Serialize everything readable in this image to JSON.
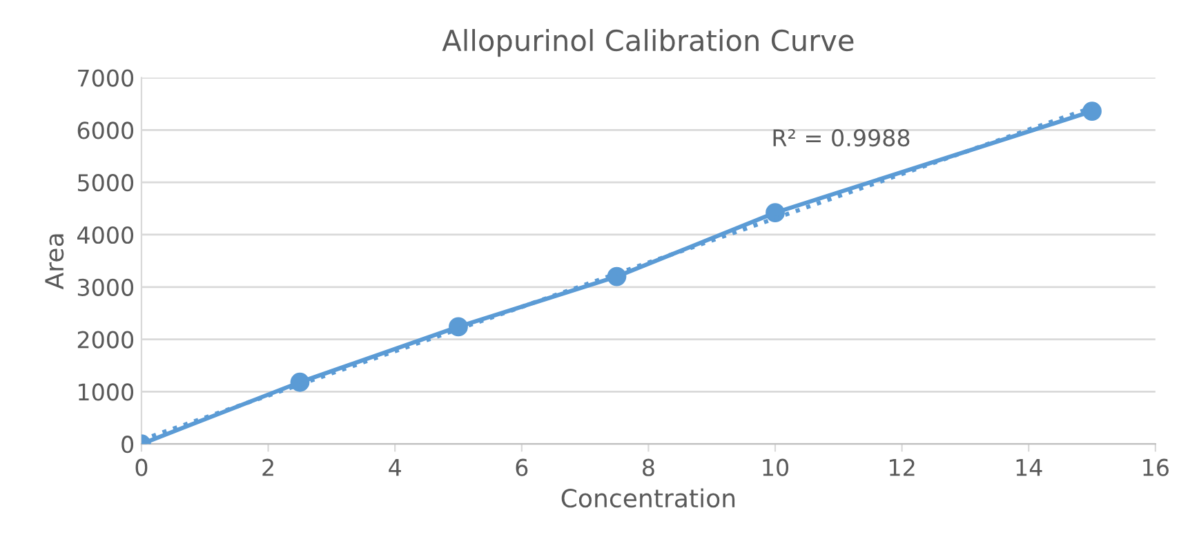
{
  "chart_data": {
    "type": "line",
    "title": "Allopurinol Calibration Curve",
    "xlabel": "Concentration",
    "ylabel": "Area",
    "series": [
      {
        "color": "#5b9bd5",
        "marker": "circle",
        "line_style": "solid",
        "x": [
          0,
          2.5,
          5,
          7.5,
          10,
          15
        ],
        "values": [
          0,
          1180,
          2240,
          3200,
          4420,
          6360
        ]
      },
      {
        "color": "#5b9bd5",
        "marker": "none",
        "line_style": "dotted",
        "x": [
          0,
          15
        ],
        "values": [
          80,
          6430
        ]
      }
    ],
    "annotations": [
      "R² = 0.9988"
    ],
    "xlim": [
      0,
      16
    ],
    "xticks": [
      0,
      2,
      4,
      6,
      8,
      10,
      12,
      14,
      16
    ],
    "ylim": [
      0,
      7000
    ],
    "yticks": [
      0,
      1000,
      2000,
      3000,
      4000,
      5000,
      6000,
      7000
    ],
    "grid": "y",
    "legend": false
  }
}
